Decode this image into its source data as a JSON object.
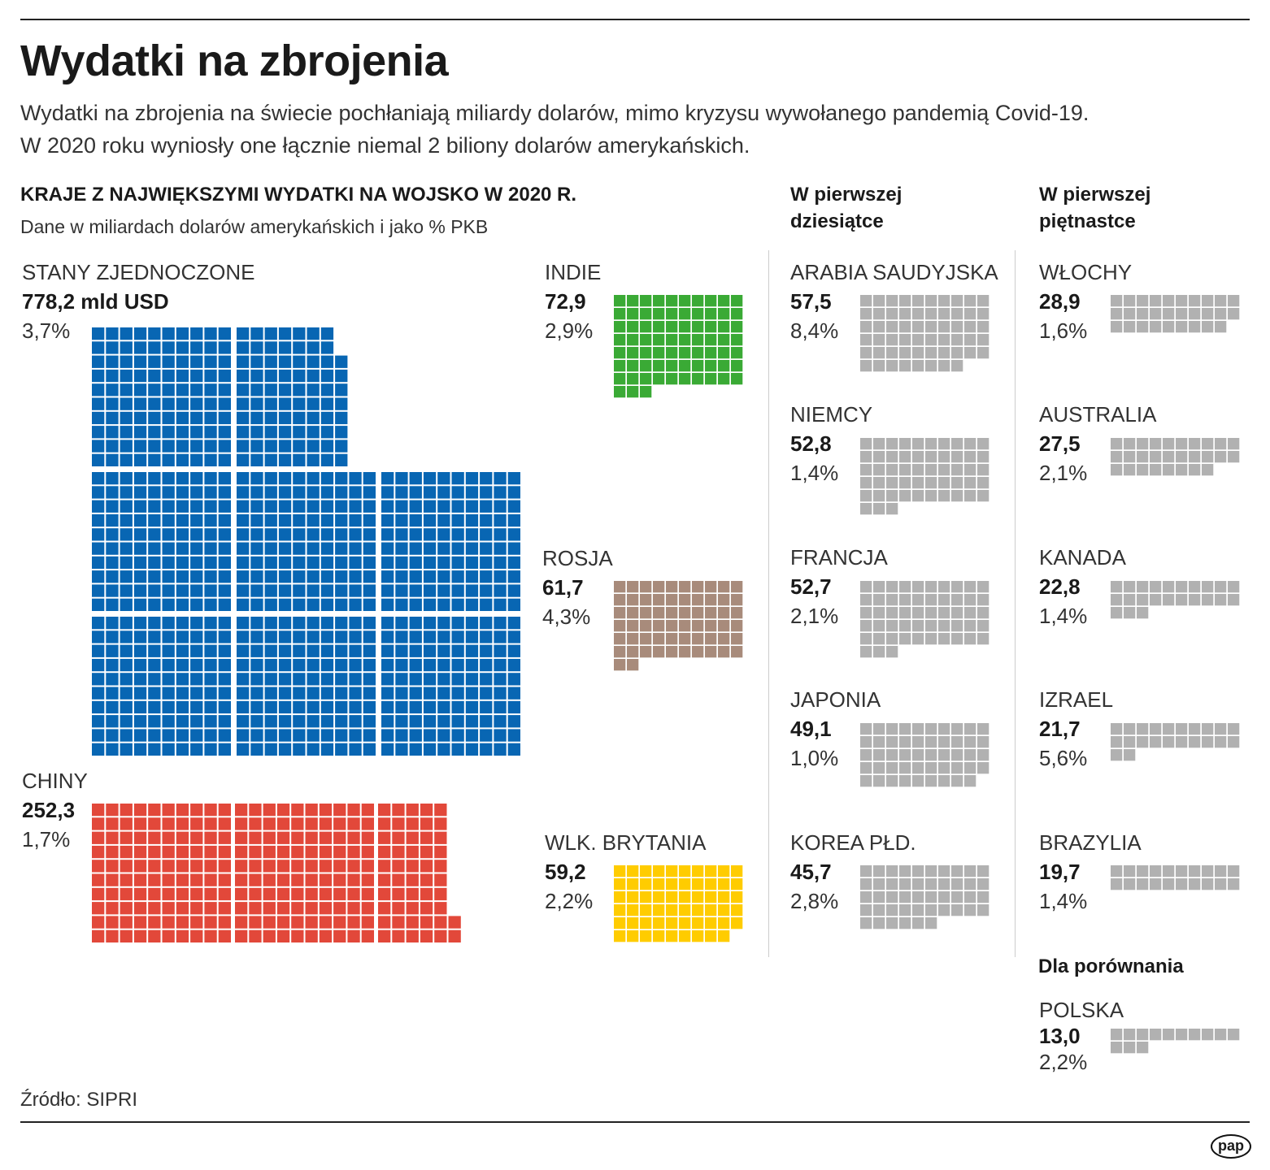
{
  "title": "Wydatki na zbrojenia",
  "subtitle": [
    "Wydatki na zbrojenia na świecie pochłaniają miliardy dolarów, mimo kryzysu wywołanego pandemią Covid-19.",
    "W 2020 roku wyniosły one łącznie niemal 2 biliony dolarów amerykańskich."
  ],
  "section": {
    "heading": "KRAJE Z NAJWIĘKSZYMI WYDATKI NA WOJSKO W 2020 R.",
    "note": "Dane w miliardach dolarów amerykańskich i jako % PKB"
  },
  "col_headers": {
    "top10": [
      "W pierwszej",
      "dziesiątce"
    ],
    "top15": [
      "W pierwszej",
      "piętnastce"
    ],
    "compare": "Dla porównania"
  },
  "source": "Źródło: SIPRI",
  "logo": "pap",
  "chart_data": {
    "type": "waffle",
    "unit": "1 square = 1 mld USD",
    "countries": [
      {
        "name": "STANY ZJEDNOCZONE",
        "value": 778.2,
        "value_label": "778,2 mld USD",
        "gdp_pct": "3,7%",
        "color": "#0866b3"
      },
      {
        "name": "CHINY",
        "value": 252.3,
        "value_label": "252,3",
        "gdp_pct": "1,7%",
        "color": "#e2483a"
      },
      {
        "name": "INDIE",
        "value": 72.9,
        "value_label": "72,9",
        "gdp_pct": "2,9%",
        "color": "#3aaa35"
      },
      {
        "name": "ROSJA",
        "value": 61.7,
        "value_label": "61,7",
        "gdp_pct": "4,3%",
        "color": "#a88b7b"
      },
      {
        "name": "WLK. BRYTANIA",
        "value": 59.2,
        "value_label": "59,2",
        "gdp_pct": "2,2%",
        "color": "#ffcc00"
      },
      {
        "name": "ARABIA SAUDYJSKA",
        "value": 57.5,
        "value_label": "57,5",
        "gdp_pct": "8,4%",
        "color": "#b1b1b1"
      },
      {
        "name": "NIEMCY",
        "value": 52.8,
        "value_label": "52,8",
        "gdp_pct": "1,4%",
        "color": "#b1b1b1"
      },
      {
        "name": "FRANCJA",
        "value": 52.7,
        "value_label": "52,7",
        "gdp_pct": "2,1%",
        "color": "#b1b1b1"
      },
      {
        "name": "JAPONIA",
        "value": 49.1,
        "value_label": "49,1",
        "gdp_pct": "1,0%",
        "color": "#b1b1b1"
      },
      {
        "name": "KOREA PŁD.",
        "value": 45.7,
        "value_label": "45,7",
        "gdp_pct": "2,8%",
        "color": "#b1b1b1"
      },
      {
        "name": "WŁOCHY",
        "value": 28.9,
        "value_label": "28,9",
        "gdp_pct": "1,6%",
        "color": "#b1b1b1"
      },
      {
        "name": "AUSTRALIA",
        "value": 27.5,
        "value_label": "27,5",
        "gdp_pct": "2,1%",
        "color": "#b1b1b1"
      },
      {
        "name": "KANADA",
        "value": 22.8,
        "value_label": "22,8",
        "gdp_pct": "1,4%",
        "color": "#b1b1b1"
      },
      {
        "name": "IZRAEL",
        "value": 21.7,
        "value_label": "21,7",
        "gdp_pct": "5,6%",
        "color": "#b1b1b1"
      },
      {
        "name": "BRAZYLIA",
        "value": 19.7,
        "value_label": "19,7",
        "gdp_pct": "1,4%",
        "color": "#b1b1b1"
      },
      {
        "name": "POLSKA",
        "value": 13.0,
        "value_label": "13,0",
        "gdp_pct": "2,2%",
        "color": "#b1b1b1"
      }
    ]
  }
}
